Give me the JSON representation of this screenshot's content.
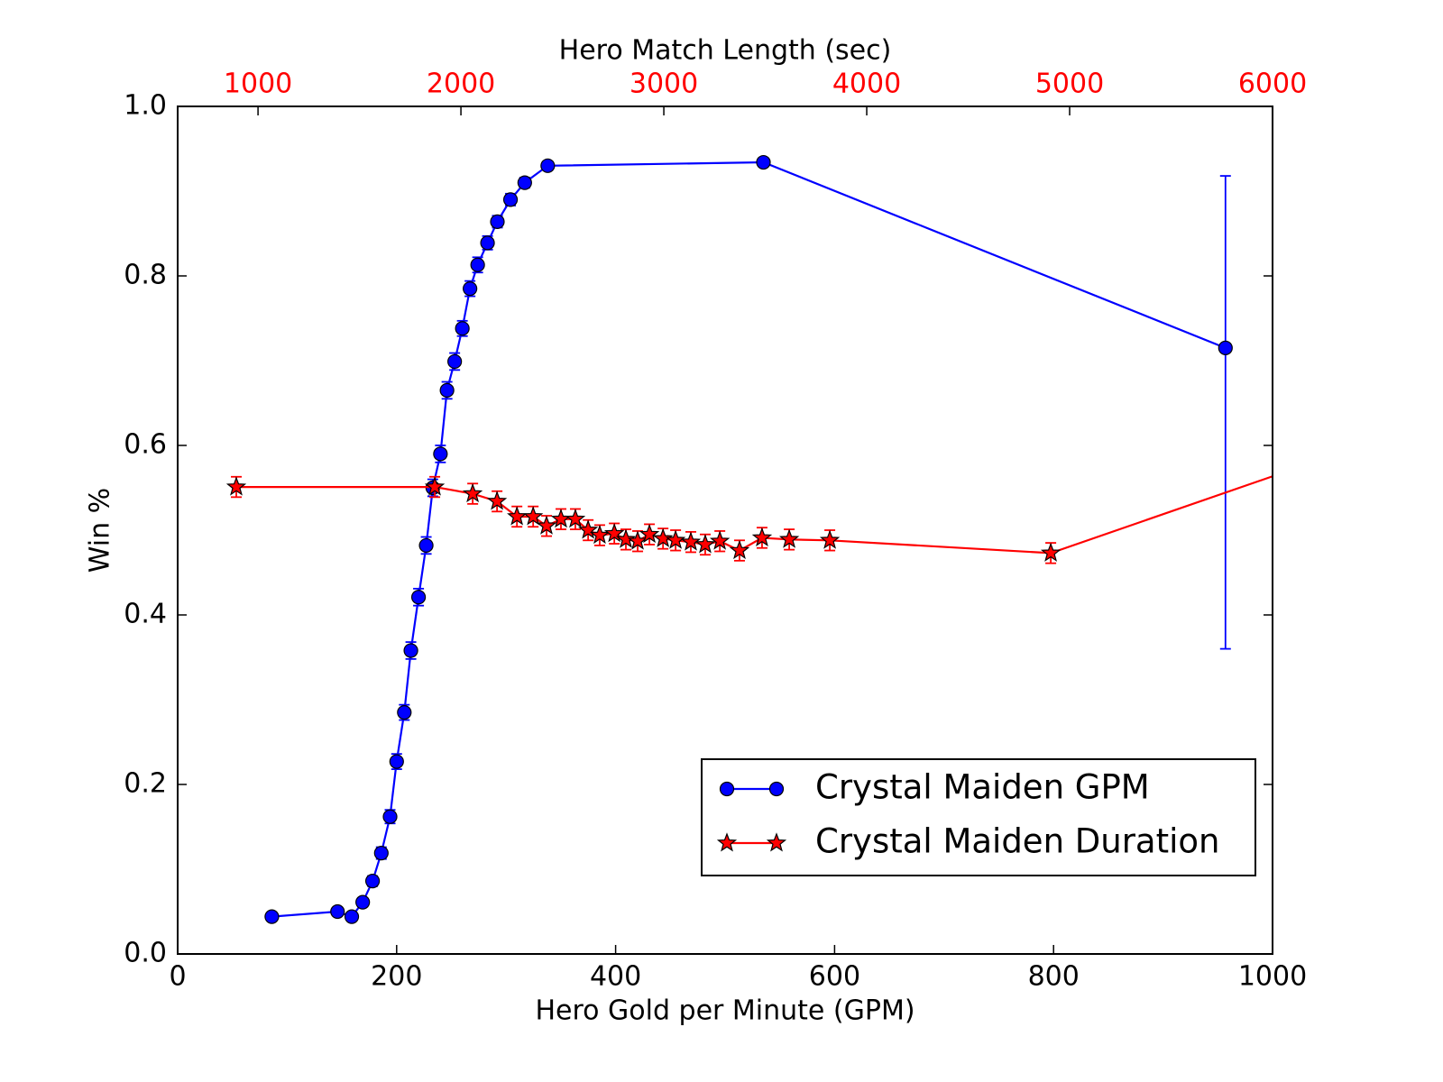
{
  "chart_data": {
    "type": "errorbar-line",
    "xlabel": "Hero Gold per Minute (GPM)",
    "ylabel": "Win %",
    "x2label": "Hero Match Length (sec)",
    "xlim": [
      0,
      1000
    ],
    "xticks": [
      0,
      200,
      400,
      600,
      800,
      1000
    ],
    "x2lim": [
      604,
      6000
    ],
    "x2ticks": [
      1000,
      2000,
      3000,
      4000,
      5000,
      6000
    ],
    "x2tick_color": "#ff0000",
    "ylim": [
      0,
      1.0
    ],
    "yticks": [
      {
        "value": 0,
        "label": "0.0"
      },
      0.2,
      0.4,
      0.6,
      0.8,
      {
        "value": 1,
        "label": "1.0"
      }
    ],
    "legend": "lower right",
    "series": [
      {
        "name": "Crystal Maiden GPM",
        "color": "#0000ff",
        "marker": "circle",
        "axis": "x",
        "x": [
          86,
          146,
          159,
          169,
          178,
          186,
          194,
          200,
          207,
          213,
          220,
          227,
          233,
          240,
          246,
          253,
          260,
          267,
          274,
          283,
          292,
          304,
          317,
          338,
          535,
          957
        ],
        "values": [
          0.044,
          0.05,
          0.044,
          0.061,
          0.086,
          0.119,
          0.162,
          0.227,
          0.285,
          0.358,
          0.421,
          0.482,
          0.55,
          0.59,
          0.665,
          0.699,
          0.738,
          0.785,
          0.813,
          0.839,
          0.864,
          0.89,
          0.91,
          0.93,
          0.934,
          0.715
        ],
        "yerr_lower": [
          0.004,
          0.004,
          0.004,
          0.005,
          0.006,
          0.007,
          0.008,
          0.009,
          0.009,
          0.01,
          0.01,
          0.01,
          0.01,
          0.01,
          0.01,
          0.01,
          0.009,
          0.009,
          0.009,
          0.008,
          0.007,
          0.007,
          0.006,
          0.005,
          0.005,
          0.355
        ],
        "yerr_upper": [
          0.004,
          0.004,
          0.004,
          0.005,
          0.006,
          0.007,
          0.008,
          0.009,
          0.009,
          0.01,
          0.01,
          0.01,
          0.01,
          0.01,
          0.01,
          0.01,
          0.009,
          0.009,
          0.009,
          0.008,
          0.007,
          0.007,
          0.006,
          0.005,
          0.005,
          0.203
        ]
      },
      {
        "name": "Crystal Maiden Duration",
        "color": "#ff0000",
        "marker": "star",
        "axis": "x2",
        "x": [
          893,
          1871,
          2058,
          2178,
          2276,
          2356,
          2422,
          2493,
          2564,
          2627,
          2684,
          2756,
          2813,
          2871,
          2929,
          2996,
          3058,
          3133,
          3204,
          3276,
          3373,
          3484,
          3618,
          3818,
          4907,
          6500
        ],
        "values": [
          0.551,
          0.551,
          0.543,
          0.534,
          0.516,
          0.516,
          0.505,
          0.513,
          0.513,
          0.5,
          0.494,
          0.496,
          0.489,
          0.487,
          0.495,
          0.49,
          0.488,
          0.486,
          0.483,
          0.487,
          0.476,
          0.491,
          0.489,
          0.488,
          0.473,
          0.605
        ],
        "yerr_lower": [
          0.012,
          0.012,
          0.012,
          0.012,
          0.012,
          0.012,
          0.012,
          0.012,
          0.012,
          0.012,
          0.012,
          0.012,
          0.012,
          0.012,
          0.012,
          0.012,
          0.012,
          0.012,
          0.012,
          0.012,
          0.012,
          0.012,
          0.012,
          0.012,
          0.012,
          0.012
        ],
        "yerr_upper": [
          0.012,
          0.012,
          0.012,
          0.012,
          0.012,
          0.012,
          0.012,
          0.012,
          0.012,
          0.012,
          0.012,
          0.012,
          0.012,
          0.012,
          0.012,
          0.012,
          0.012,
          0.012,
          0.012,
          0.012,
          0.012,
          0.012,
          0.012,
          0.012,
          0.012,
          0.012
        ]
      }
    ]
  }
}
